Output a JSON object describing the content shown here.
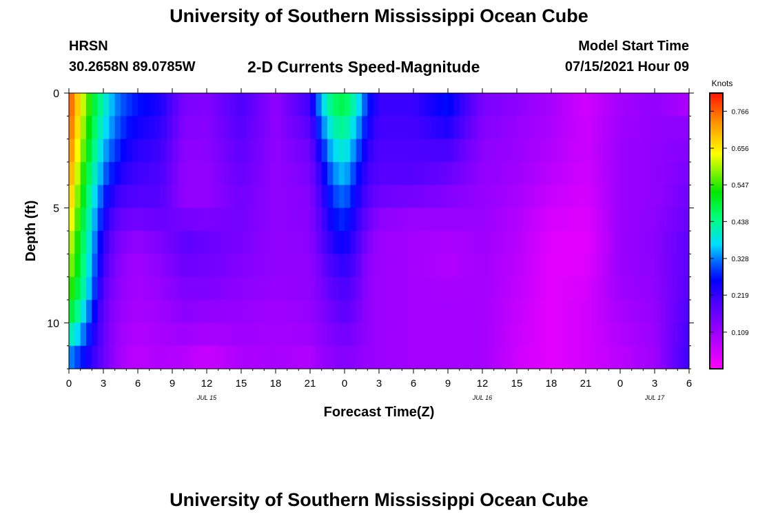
{
  "page": {
    "title_top": "University of Southern Mississippi Ocean Cube",
    "title_bottom": "University of Southern Mississippi Ocean Cube"
  },
  "header": {
    "station": "HRSN",
    "coords": "30.2658N  89.0785W",
    "plot_title": "2-D Currents Speed-Magnitude",
    "model_label": "Model Start Time",
    "model_time": "07/15/2021 Hour 09"
  },
  "chart_data": {
    "type": "heatmap",
    "title": "2-D Currents Speed-Magnitude",
    "xlabel": "Forecast Time(Z)",
    "ylabel": "Depth (ft)",
    "x_tick_labels": [
      "0",
      "3",
      "6",
      "9",
      "12",
      "15",
      "18",
      "21",
      "0",
      "3",
      "6",
      "9",
      "12",
      "15",
      "18",
      "21",
      "0",
      "3",
      "6"
    ],
    "date_labels": [
      {
        "label": "JUL 15",
        "hour_offset": 12
      },
      {
        "label": "JUL 16",
        "hour_offset": 36
      },
      {
        "label": "JUL 17",
        "hour_offset": 51
      }
    ],
    "x_range_hours": [
      0,
      54
    ],
    "ylim": [
      0,
      12
    ],
    "y_tick_labels": [
      "0",
      "5",
      "10"
    ],
    "y_ticks": [
      0,
      5,
      10
    ],
    "colorbar": {
      "label": "Knots",
      "min": 0.0,
      "max": 0.82,
      "tick_labels": [
        "0.766",
        "0.656",
        "0.547",
        "0.438",
        "0.328",
        "0.219",
        "0.109"
      ],
      "ticks": [
        0.766,
        0.656,
        0.547,
        0.438,
        0.328,
        0.219,
        0.109
      ]
    },
    "column_hours": [
      0,
      1,
      2,
      3,
      4,
      5,
      6,
      8,
      10,
      12,
      15,
      18,
      21,
      22,
      23,
      24,
      25,
      26,
      27,
      30,
      33,
      36,
      39,
      42,
      45,
      48,
      51,
      54
    ],
    "depths_ft": [
      0,
      1,
      2,
      3,
      4,
      5,
      6,
      7,
      8,
      9,
      10,
      11,
      12
    ],
    "values": [
      [
        0.79,
        0.66,
        0.52,
        0.42,
        0.34,
        0.3,
        0.28,
        0.25,
        0.15,
        0.14,
        0.2,
        0.12,
        0.22,
        0.38,
        0.48,
        0.5,
        0.42,
        0.3,
        0.22,
        0.22,
        0.28,
        0.15,
        0.13,
        0.1,
        0.05,
        0.1,
        0.12,
        0.06
      ],
      [
        0.79,
        0.64,
        0.5,
        0.4,
        0.33,
        0.29,
        0.26,
        0.23,
        0.14,
        0.13,
        0.19,
        0.12,
        0.2,
        0.34,
        0.44,
        0.46,
        0.38,
        0.27,
        0.21,
        0.21,
        0.26,
        0.14,
        0.12,
        0.09,
        0.05,
        0.1,
        0.12,
        0.12
      ],
      [
        0.77,
        0.62,
        0.48,
        0.37,
        0.31,
        0.26,
        0.24,
        0.22,
        0.13,
        0.13,
        0.18,
        0.12,
        0.17,
        0.29,
        0.39,
        0.42,
        0.34,
        0.24,
        0.2,
        0.2,
        0.22,
        0.13,
        0.11,
        0.09,
        0.06,
        0.11,
        0.12,
        0.13
      ],
      [
        0.75,
        0.59,
        0.45,
        0.34,
        0.28,
        0.24,
        0.22,
        0.2,
        0.12,
        0.12,
        0.17,
        0.12,
        0.15,
        0.25,
        0.35,
        0.38,
        0.3,
        0.22,
        0.19,
        0.19,
        0.18,
        0.12,
        0.11,
        0.08,
        0.05,
        0.11,
        0.12,
        0.14
      ],
      [
        0.72,
        0.56,
        0.42,
        0.31,
        0.24,
        0.21,
        0.2,
        0.19,
        0.12,
        0.12,
        0.16,
        0.12,
        0.14,
        0.22,
        0.31,
        0.34,
        0.27,
        0.2,
        0.18,
        0.18,
        0.15,
        0.12,
        0.1,
        0.07,
        0.05,
        0.11,
        0.12,
        0.15
      ],
      [
        0.69,
        0.53,
        0.39,
        0.27,
        0.2,
        0.18,
        0.18,
        0.18,
        0.12,
        0.12,
        0.15,
        0.12,
        0.13,
        0.2,
        0.28,
        0.3,
        0.24,
        0.18,
        0.14,
        0.12,
        0.12,
        0.11,
        0.09,
        0.05,
        0.04,
        0.11,
        0.12,
        0.16
      ],
      [
        0.65,
        0.51,
        0.37,
        0.24,
        0.17,
        0.14,
        0.13,
        0.15,
        0.18,
        0.17,
        0.15,
        0.12,
        0.13,
        0.19,
        0.25,
        0.27,
        0.22,
        0.15,
        0.11,
        0.1,
        0.1,
        0.11,
        0.08,
        0.04,
        0.03,
        0.11,
        0.13,
        0.17
      ],
      [
        0.62,
        0.49,
        0.35,
        0.22,
        0.15,
        0.12,
        0.11,
        0.13,
        0.17,
        0.16,
        0.14,
        0.12,
        0.12,
        0.17,
        0.22,
        0.24,
        0.2,
        0.13,
        0.11,
        0.1,
        0.08,
        0.1,
        0.08,
        0.03,
        0.03,
        0.11,
        0.13,
        0.18
      ],
      [
        0.59,
        0.48,
        0.34,
        0.2,
        0.14,
        0.11,
        0.1,
        0.12,
        0.15,
        0.15,
        0.13,
        0.12,
        0.12,
        0.15,
        0.19,
        0.21,
        0.18,
        0.12,
        0.11,
        0.1,
        0.09,
        0.1,
        0.07,
        0.03,
        0.04,
        0.11,
        0.12,
        0.18
      ],
      [
        0.54,
        0.44,
        0.31,
        0.18,
        0.13,
        0.11,
        0.1,
        0.11,
        0.13,
        0.13,
        0.12,
        0.11,
        0.12,
        0.14,
        0.17,
        0.19,
        0.16,
        0.12,
        0.11,
        0.1,
        0.1,
        0.1,
        0.07,
        0.03,
        0.05,
        0.1,
        0.12,
        0.19
      ],
      [
        0.48,
        0.39,
        0.27,
        0.17,
        0.12,
        0.1,
        0.09,
        0.1,
        0.12,
        0.11,
        0.11,
        0.1,
        0.11,
        0.13,
        0.15,
        0.17,
        0.15,
        0.12,
        0.11,
        0.1,
        0.1,
        0.1,
        0.06,
        0.03,
        0.05,
        0.09,
        0.11,
        0.2
      ],
      [
        0.38,
        0.31,
        0.24,
        0.17,
        0.12,
        0.09,
        0.08,
        0.09,
        0.09,
        0.08,
        0.1,
        0.1,
        0.1,
        0.12,
        0.13,
        0.14,
        0.13,
        0.12,
        0.11,
        0.1,
        0.1,
        0.1,
        0.06,
        0.03,
        0.05,
        0.08,
        0.11,
        0.21
      ],
      [
        0.3,
        0.26,
        0.21,
        0.16,
        0.11,
        0.08,
        0.07,
        0.08,
        0.07,
        0.04,
        0.08,
        0.09,
        0.07,
        0.11,
        0.12,
        0.13,
        0.12,
        0.11,
        0.11,
        0.1,
        0.1,
        0.1,
        0.05,
        0.03,
        0.05,
        0.07,
        0.1,
        0.22
      ]
    ]
  }
}
